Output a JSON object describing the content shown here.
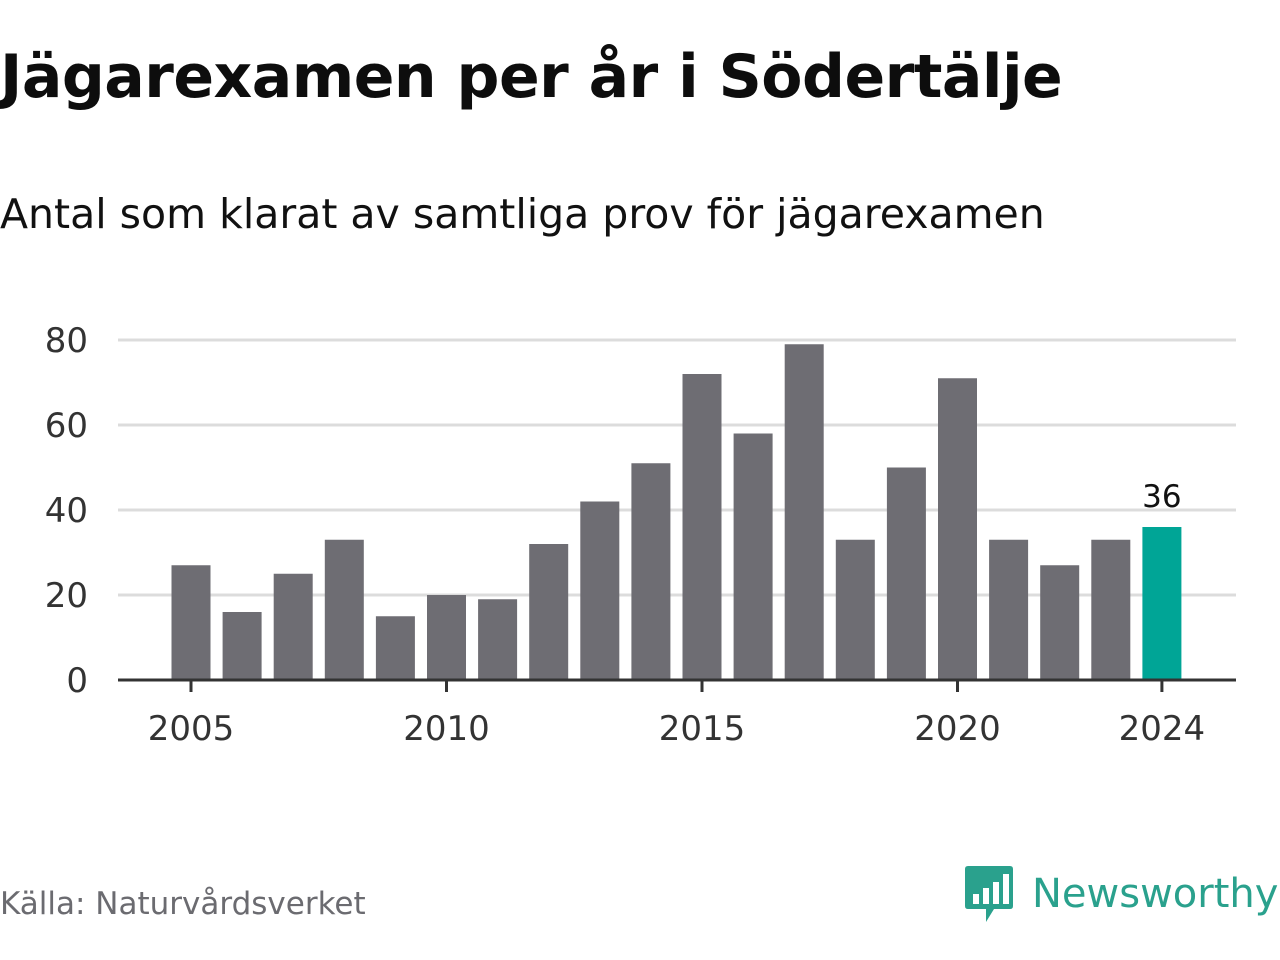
{
  "header": {
    "title": "Jägarexamen per år i Södertälje",
    "subtitle": "Antal som klarat av samtliga prov för jägarexamen"
  },
  "footer": {
    "source": "Källa: Naturvårdsverket",
    "brand": "Newsworthy",
    "brand_icon": "bar-chart-speech-bubble-icon"
  },
  "colors": {
    "bar": "#6e6d73",
    "highlight": "#00a596",
    "grid": "#dcdcdc",
    "axis": "#333333",
    "brand": "#2aa18d"
  },
  "chart_data": {
    "type": "bar",
    "categories": [
      "2005",
      "2006",
      "2007",
      "2008",
      "2009",
      "2010",
      "2011",
      "2012",
      "2013",
      "2014",
      "2015",
      "2016",
      "2017",
      "2018",
      "2019",
      "2020",
      "2021",
      "2022",
      "2023",
      "2024"
    ],
    "values": [
      27,
      16,
      25,
      33,
      15,
      20,
      19,
      32,
      42,
      51,
      72,
      58,
      79,
      33,
      50,
      71,
      33,
      27,
      33,
      36
    ],
    "x_tick_labels": [
      "2005",
      "2010",
      "2015",
      "2020",
      "2024"
    ],
    "y_ticks": [
      0,
      20,
      40,
      60,
      80
    ],
    "ylim": [
      0,
      80
    ],
    "grid": true,
    "highlight_category": "2024",
    "data_labels": [
      {
        "category": "2024",
        "label": "36"
      }
    ],
    "title": "Jägarexamen per år i Södertälje",
    "subtitle": "Antal som klarat av samtliga prov för jägarexamen"
  }
}
